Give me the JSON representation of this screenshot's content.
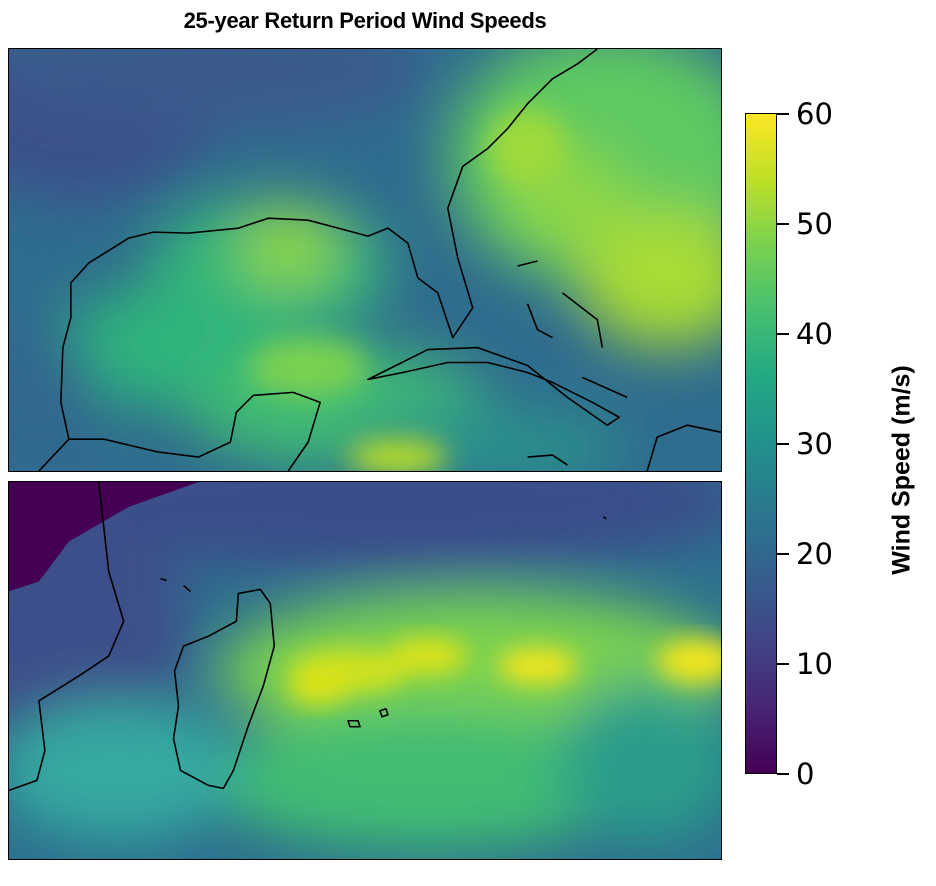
{
  "title": "25-year Return Period Wind Speeds",
  "colorbar": {
    "label": "Wind Speed (m/s)",
    "min": 0,
    "max": 60,
    "ticks": [
      "0",
      "10",
      "20",
      "30",
      "40",
      "50",
      "60"
    ],
    "colormap": "viridis"
  },
  "maps": [
    {
      "region": "Gulf of Mexico and Caribbean",
      "value_range_mps": [
        10,
        58
      ]
    },
    {
      "region": "Southwest Indian Ocean around Madagascar",
      "value_range_mps": [
        0,
        60
      ]
    }
  ],
  "colors": {
    "low": "#440154",
    "mid": "#21918c",
    "high": "#fde725"
  }
}
